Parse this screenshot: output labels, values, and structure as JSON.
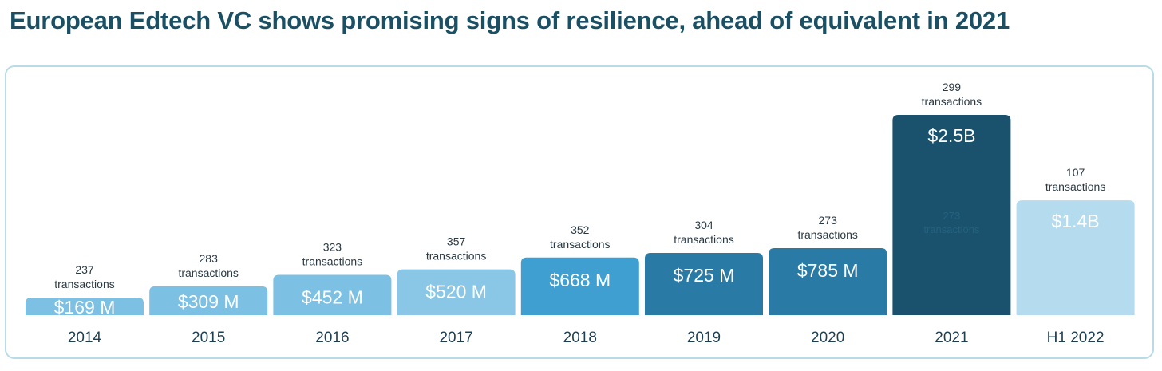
{
  "title": "European Edtech VC shows promising signs of resilience, ahead of equivalent in 2021",
  "chart_data": {
    "type": "bar",
    "unit": "$M",
    "categories": [
      "2014",
      "2015",
      "2016",
      "2017",
      "2018",
      "2019",
      "2020",
      "2021",
      "H1 2022"
    ],
    "values": [
      169,
      309,
      452,
      520,
      668,
      725,
      785,
      2500,
      1400
    ],
    "value_labels": [
      "$169 M",
      "$309 M",
      "$452 M",
      "$520 M",
      "$668 M",
      "$725 M",
      "$785 M",
      "$2.5B",
      "$1.4B"
    ],
    "transactions": [
      237,
      283,
      323,
      357,
      352,
      304,
      273,
      299,
      107
    ],
    "transactions_suffix": "transactions",
    "ghost_text": {
      "number": "273",
      "label": "transactions"
    },
    "colors": [
      "#7cc0e3",
      "#7cc0e3",
      "#7cc0e3",
      "#8ac7e6",
      "#3f9fd1",
      "#2a7aa6",
      "#2a7aa6",
      "#1a526d",
      "#b4dbee"
    ],
    "grid": false,
    "legend": "none"
  }
}
